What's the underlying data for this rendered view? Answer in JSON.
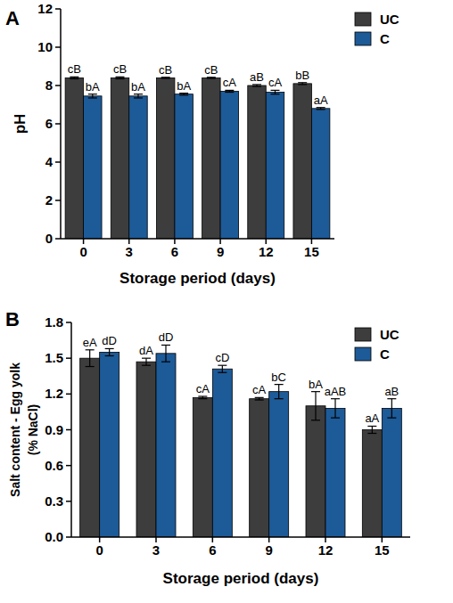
{
  "chart_data": [
    {
      "type": "bar",
      "title": "A",
      "xlabel": "Storage period (days)",
      "ylabel": [
        "pH"
      ],
      "categories": [
        "0",
        "3",
        "6",
        "9",
        "12",
        "15"
      ],
      "series": [
        {
          "name": "UC",
          "color": "#3d3d3d",
          "values": [
            8.4,
            8.4,
            8.4,
            8.4,
            8.0,
            8.1
          ],
          "errors": [
            0.05,
            0.05,
            0.03,
            0.03,
            0.05,
            0.05
          ],
          "labels": [
            "cB",
            "cB",
            "cB",
            "cB",
            "aB",
            "bB"
          ]
        },
        {
          "name": "C",
          "color": "#1d5a98",
          "values": [
            7.45,
            7.45,
            7.55,
            7.7,
            7.65,
            6.8
          ],
          "errors": [
            0.1,
            0.1,
            0.05,
            0.05,
            0.1,
            0.05
          ],
          "labels": [
            "bA",
            "bA",
            "bA",
            "cA",
            "cA",
            "aA"
          ]
        }
      ],
      "ylim": [
        0,
        12
      ],
      "yticks": [
        0,
        2,
        4,
        6,
        8,
        10,
        12
      ],
      "grid": false,
      "legend": "upper right"
    },
    {
      "type": "bar",
      "title": "B",
      "xlabel": "Storage period (days)",
      "ylabel": [
        "Salt content - Egg yolk",
        "(% NaCl)"
      ],
      "categories": [
        "0",
        "3",
        "6",
        "9",
        "12",
        "15"
      ],
      "series": [
        {
          "name": "UC",
          "color": "#3d3d3d",
          "values": [
            1.5,
            1.47,
            1.17,
            1.16,
            1.1,
            0.9
          ],
          "errors": [
            0.07,
            0.03,
            0.01,
            0.01,
            0.12,
            0.03
          ],
          "labels": [
            "eA",
            "dA",
            "cA",
            "cA",
            "bA",
            "aA"
          ]
        },
        {
          "name": "C",
          "color": "#1d5a98",
          "values": [
            1.55,
            1.54,
            1.41,
            1.22,
            1.08,
            1.08
          ],
          "errors": [
            0.03,
            0.07,
            0.03,
            0.06,
            0.08,
            0.08
          ],
          "labels": [
            "dD",
            "dD",
            "cD",
            "bC",
            "aAB",
            "aB"
          ]
        }
      ],
      "ylim": [
        0,
        1.8
      ],
      "yticks": [
        {
          "value": 0,
          "label": "0.0"
        },
        0.3,
        0.6,
        0.9,
        1.2,
        1.5,
        1.8
      ],
      "grid": false,
      "legend": "upper right"
    }
  ]
}
